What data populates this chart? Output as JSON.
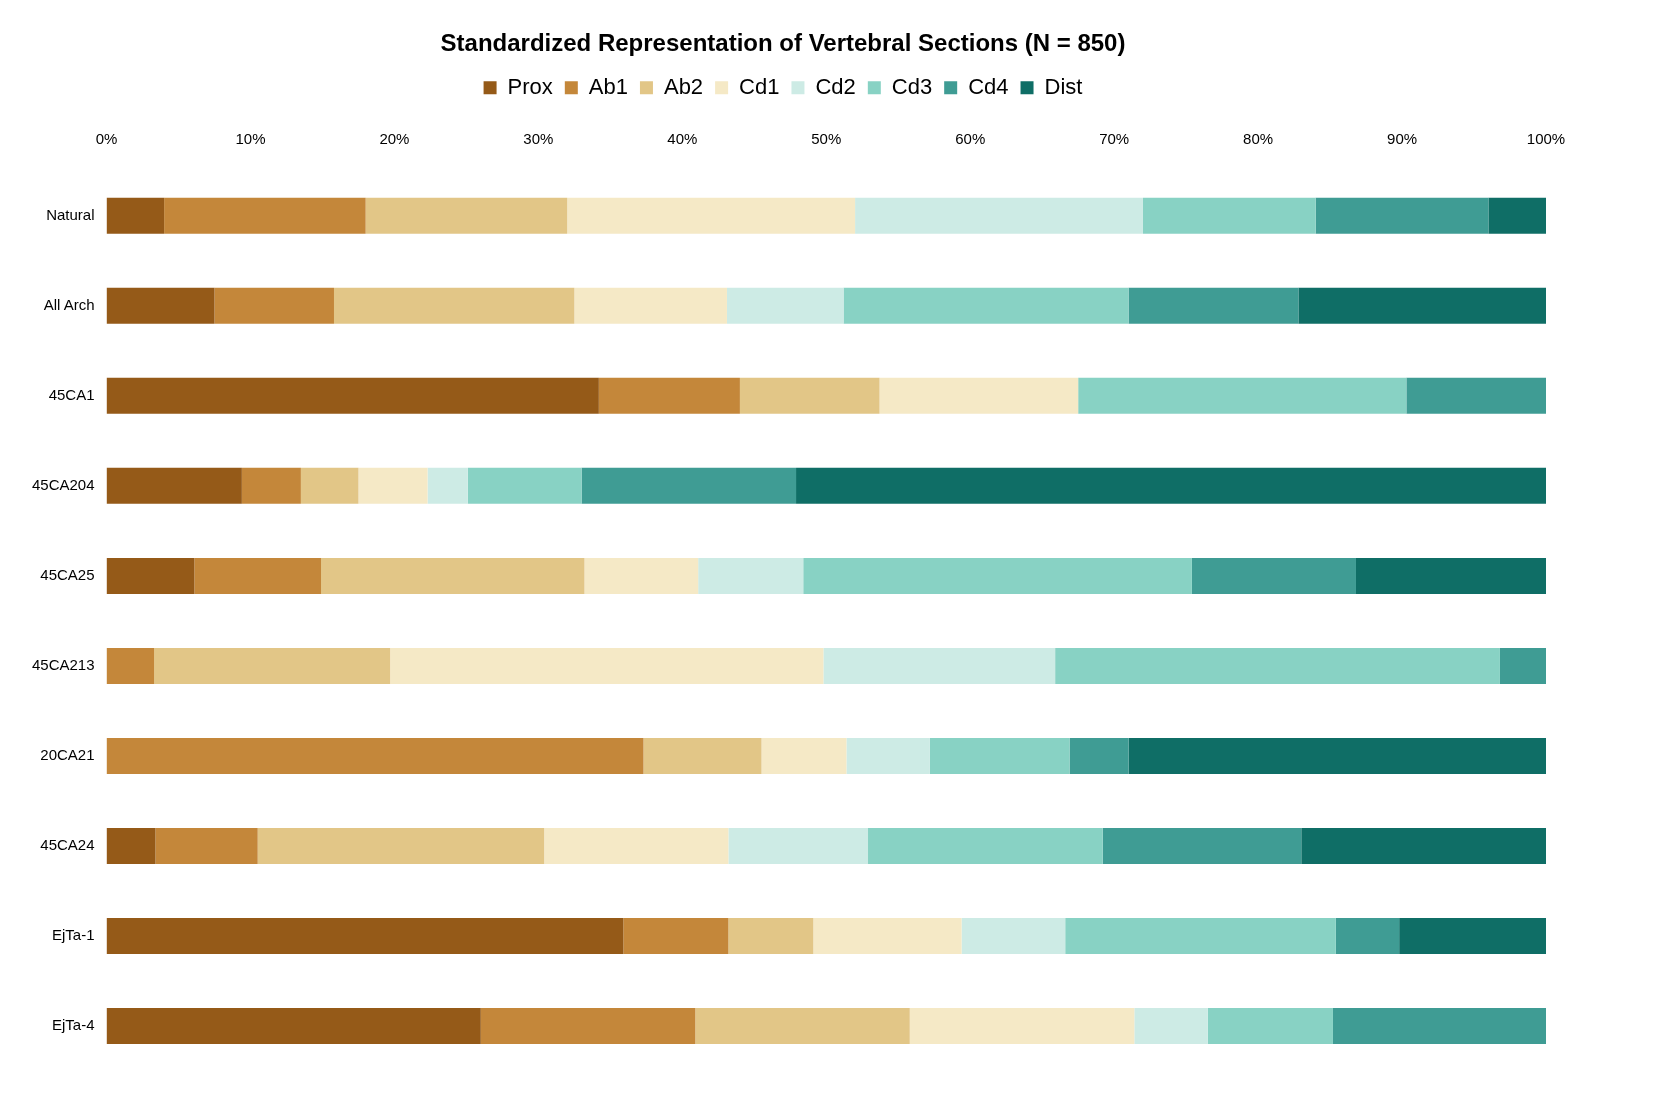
{
  "chart_data": {
    "type": "bar",
    "orientation": "horizontal",
    "stacked": true,
    "title": "Standardized Representation of Vertebral Sections (N = 850)",
    "legend": "top",
    "grid": false,
    "categories": [
      "Natural",
      "All Arch",
      "45CA1",
      "45CA204",
      "45CA25",
      "45CA213",
      "20CA21",
      "45CA24",
      "EjTa-1",
      "EjTa-4"
    ],
    "xlim": [
      0,
      100
    ],
    "xticks": [
      {
        "value": 0,
        "label": "0%"
      },
      {
        "value": 10,
        "label": "10%"
      },
      {
        "value": 20,
        "label": "20%"
      },
      {
        "value": 30,
        "label": "30%"
      },
      {
        "value": 40,
        "label": "40%"
      },
      {
        "value": 50,
        "label": "50%"
      },
      {
        "value": 60,
        "label": "60%"
      },
      {
        "value": 70,
        "label": "70%"
      },
      {
        "value": 80,
        "label": "80%"
      },
      {
        "value": 90,
        "label": "90%"
      },
      {
        "value": 100,
        "label": "100%"
      }
    ],
    "series": [
      {
        "name": "Prox",
        "color": "#955a18",
        "values": [
          4,
          7.5,
          34.2,
          9.4,
          6.1,
          0,
          0,
          3.4,
          35.9,
          26.0
        ]
      },
      {
        "name": "Ab1",
        "color": "#c4873a",
        "values": [
          14,
          8.3,
          9.8,
          4.1,
          8.8,
          3.3,
          37.3,
          7.1,
          7.3,
          14.9
        ]
      },
      {
        "name": "Ab2",
        "color": "#e2c687",
        "values": [
          14,
          16.7,
          9.7,
          4.0,
          18.3,
          16.4,
          8.2,
          19.9,
          5.9,
          14.9
        ]
      },
      {
        "name": "Cd1",
        "color": "#f5e9c6",
        "values": [
          20,
          10.6,
          13.8,
          4.8,
          7.9,
          30.1,
          5.9,
          12.8,
          10.3,
          15.6
        ]
      },
      {
        "name": "Cd2",
        "color": "#cdebe5",
        "values": [
          20,
          8.1,
          0,
          2.8,
          7.3,
          16.1,
          5.8,
          9.7,
          7.2,
          5.1
        ]
      },
      {
        "name": "Cd3",
        "color": "#88d2c4",
        "values": [
          12,
          19.8,
          22.8,
          7.9,
          27.0,
          30.9,
          9.7,
          16.3,
          18.8,
          8.7
        ]
      },
      {
        "name": "Cd4",
        "color": "#3f9c94",
        "values": [
          12,
          11.8,
          9.7,
          14.9,
          11.4,
          3.2,
          4.1,
          13.8,
          4.4,
          14.8
        ]
      },
      {
        "name": "Dist",
        "color": "#0f6e66",
        "values": [
          4,
          17.2,
          0,
          52.1,
          13.2,
          0,
          29.0,
          17.0,
          10.2,
          0
        ]
      }
    ]
  }
}
